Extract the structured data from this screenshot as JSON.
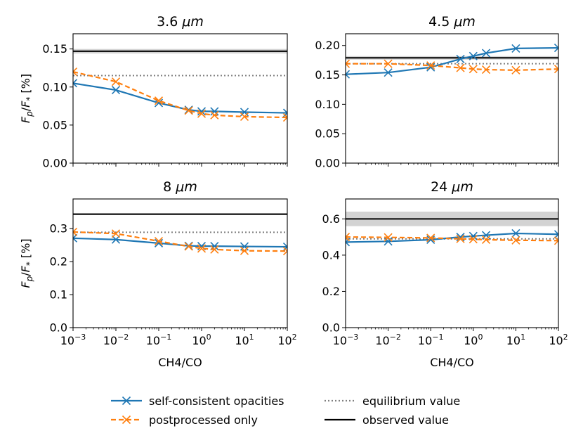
{
  "chart_data": [
    {
      "type": "line",
      "title": "3.6 μm",
      "xlabel": "",
      "ylabel": "F_p/F_* [%]",
      "xscale": "log",
      "xlim": [
        0.001,
        100
      ],
      "ylim": [
        0.0,
        0.17
      ],
      "yticks": [
        "0.00",
        "0.05",
        "0.10",
        "0.15"
      ],
      "x": [
        0.001,
        0.01,
        0.1,
        0.5,
        1,
        2,
        10,
        100
      ],
      "series": [
        {
          "name": "self-consistent opacities",
          "values": [
            0.105,
            0.096,
            0.079,
            0.07,
            0.068,
            0.068,
            0.067,
            0.066
          ]
        },
        {
          "name": "postprocessed only",
          "values": [
            0.12,
            0.107,
            0.082,
            0.069,
            0.065,
            0.063,
            0.061,
            0.06
          ]
        }
      ],
      "equilibrium": 0.115,
      "observed": 0.147,
      "observed_band": [
        0.144,
        0.15
      ]
    },
    {
      "type": "line",
      "title": "4.5 μm",
      "xlabel": "",
      "ylabel": "",
      "xscale": "log",
      "xlim": [
        0.001,
        100
      ],
      "ylim": [
        0.0,
        0.22
      ],
      "yticks": [
        "0.00",
        "0.05",
        "0.10",
        "0.15",
        "0.20"
      ],
      "x": [
        0.001,
        0.01,
        0.1,
        0.5,
        1,
        2,
        10,
        100
      ],
      "series": [
        {
          "name": "self-consistent opacities",
          "values": [
            0.151,
            0.154,
            0.163,
            0.177,
            0.182,
            0.187,
            0.195,
            0.196
          ]
        },
        {
          "name": "postprocessed only",
          "values": [
            0.169,
            0.169,
            0.166,
            0.162,
            0.16,
            0.159,
            0.158,
            0.16
          ]
        }
      ],
      "equilibrium": 0.169,
      "observed": 0.179,
      "observed_band": [
        0.176,
        0.182
      ]
    },
    {
      "type": "line",
      "title": "8 μm",
      "xlabel": "CH4/CO",
      "ylabel": "F_p/F_* [%]",
      "xscale": "log",
      "xlim": [
        0.001,
        100
      ],
      "ylim": [
        0.0,
        0.39
      ],
      "yticks": [
        "0.0",
        "0.1",
        "0.2",
        "0.3"
      ],
      "x": [
        0.001,
        0.01,
        0.1,
        0.5,
        1,
        2,
        10,
        100
      ],
      "series": [
        {
          "name": "self-consistent opacities",
          "values": [
            0.271,
            0.267,
            0.256,
            0.248,
            0.247,
            0.247,
            0.246,
            0.245
          ]
        },
        {
          "name": "postprocessed only",
          "values": [
            0.29,
            0.285,
            0.262,
            0.246,
            0.24,
            0.237,
            0.233,
            0.232
          ]
        }
      ],
      "equilibrium": 0.289,
      "observed": 0.344,
      "observed_band": [
        0.341,
        0.347
      ]
    },
    {
      "type": "line",
      "title": "24 μm",
      "xlabel": "CH4/CO",
      "ylabel": "",
      "xscale": "log",
      "xlim": [
        0.001,
        100
      ],
      "ylim": [
        0.0,
        0.71
      ],
      "yticks": [
        "0.0",
        "0.2",
        "0.4",
        "0.6"
      ],
      "x": [
        0.001,
        0.01,
        0.1,
        0.5,
        1,
        2,
        10,
        100
      ],
      "series": [
        {
          "name": "self-consistent opacities",
          "values": [
            0.472,
            0.476,
            0.485,
            0.5,
            0.505,
            0.51,
            0.52,
            0.515
          ]
        },
        {
          "name": "postprocessed only",
          "values": [
            0.5,
            0.498,
            0.495,
            0.49,
            0.488,
            0.485,
            0.482,
            0.48
          ]
        }
      ],
      "equilibrium": 0.49,
      "observed": 0.6,
      "observed_band": [
        0.56,
        0.64
      ]
    }
  ],
  "xticks": [
    {
      "base": "10",
      "exp": "−3"
    },
    {
      "base": "10",
      "exp": "−2"
    },
    {
      "base": "10",
      "exp": "−1"
    },
    {
      "base": "10",
      "exp": "0"
    },
    {
      "base": "10",
      "exp": "1"
    },
    {
      "base": "10",
      "exp": "2"
    }
  ],
  "ylabel_parts": {
    "f": "F",
    "p": "p",
    "slash": "/",
    "star": "*",
    "unit": "[%]"
  },
  "legend": {
    "self_consistent": "self-consistent opacities",
    "postprocessed": "postprocessed only",
    "equilibrium": "equilibrium value",
    "observed": "observed value"
  },
  "colors": {
    "self_consistent": "#1f77b4",
    "postprocessed": "#ff7f0e",
    "equilibrium": "#808080",
    "observed": "#000000",
    "band": "#d3d3d3"
  }
}
